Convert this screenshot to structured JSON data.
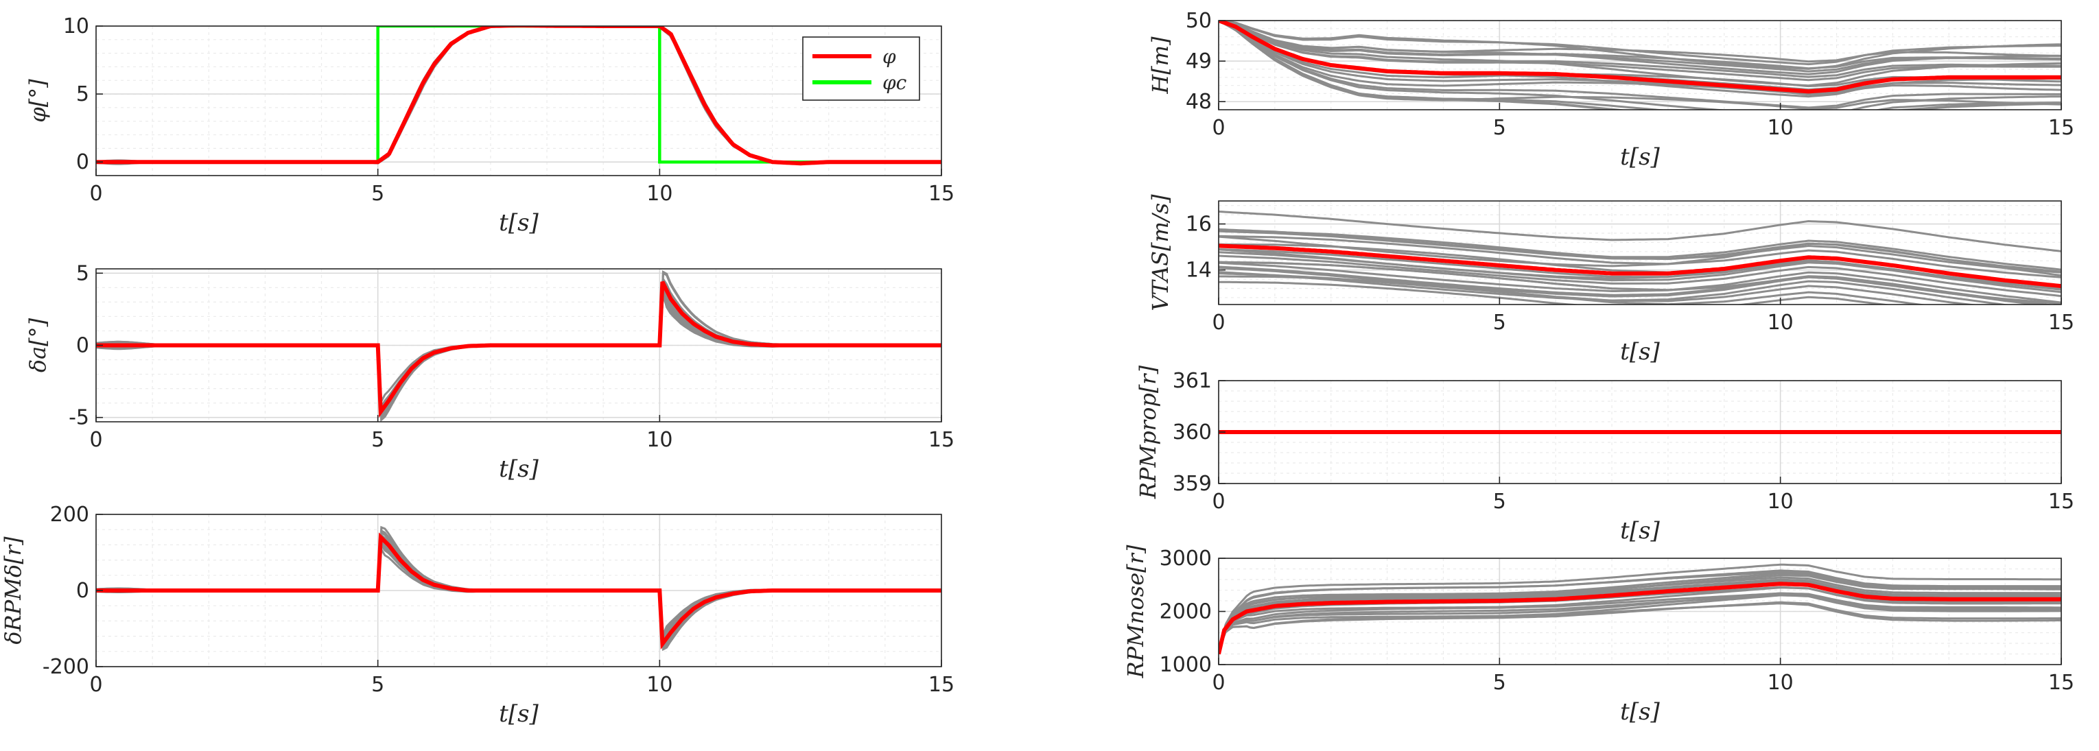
{
  "chart_data": [
    {
      "type": "line",
      "panel": "roll-angle",
      "ylabel": "φ[°]",
      "xlabel": "t[s]",
      "xlim": [
        0,
        15
      ],
      "ylim": [
        -1,
        10
      ],
      "xticks": [
        0,
        5,
        10,
        15
      ],
      "xtick_labels": [
        "0",
        "5",
        "10",
        "15"
      ],
      "yticks": [
        0,
        5,
        10
      ],
      "ytick_labels": [
        "0",
        "5",
        "10"
      ],
      "grid": true,
      "legend": {
        "position": "top-right",
        "entries": [
          {
            "label": "φ",
            "color": "#ff0000"
          },
          {
            "label": "φc",
            "color": "#00ff00"
          }
        ]
      },
      "mean": {
        "name": "φ",
        "color": "#ff0000",
        "x": [
          0,
          0.5,
          1,
          2,
          3,
          4,
          5,
          5.2,
          5.5,
          5.8,
          6,
          6.3,
          6.6,
          7,
          7.5,
          8,
          9,
          10,
          10.2,
          10.5,
          10.8,
          11,
          11.3,
          11.6,
          12,
          12.5,
          13,
          14,
          15
        ],
        "y": [
          0,
          0,
          0,
          0,
          0,
          0,
          0,
          0.6,
          3.2,
          5.8,
          7.2,
          8.7,
          9.5,
          10,
          10.05,
          10.02,
          10,
          10,
          9.4,
          6.8,
          4.2,
          2.8,
          1.3,
          0.5,
          0,
          -0.1,
          0,
          0,
          0
        ]
      },
      "command": {
        "name": "φc",
        "color": "#00ff00",
        "x": [
          0,
          5,
          5,
          10,
          10,
          15
        ],
        "y": [
          0,
          0,
          10,
          10,
          0,
          0
        ]
      },
      "mc_series_count": 20
    },
    {
      "type": "line",
      "panel": "aileron-deflection",
      "ylabel": "δa[°]",
      "xlabel": "t[s]",
      "xlim": [
        0,
        15
      ],
      "ylim": [
        -5.3,
        5.3
      ],
      "xticks": [
        0,
        5,
        10,
        15
      ],
      "xtick_labels": [
        "0",
        "5",
        "10",
        "15"
      ],
      "yticks": [
        -5,
        0,
        5
      ],
      "ytick_labels": [
        "-5",
        "0",
        "5"
      ],
      "grid": true,
      "mean": {
        "name": "δa mean",
        "color": "#ff0000",
        "x": [
          0,
          1,
          2,
          3,
          4,
          5,
          5.05,
          5.2,
          5.4,
          5.6,
          5.8,
          6,
          6.3,
          6.6,
          7,
          8,
          9,
          10,
          10.05,
          10.2,
          10.4,
          10.6,
          10.8,
          11,
          11.3,
          11.6,
          12,
          13,
          14,
          15
        ],
        "y": [
          0,
          0,
          0,
          0,
          0,
          0,
          -4.6,
          -3.8,
          -2.6,
          -1.6,
          -0.9,
          -0.5,
          -0.2,
          -0.05,
          0,
          0,
          0,
          0,
          4.4,
          3.2,
          2.2,
          1.5,
          1.0,
          0.6,
          0.25,
          0.08,
          0,
          0,
          0,
          0
        ]
      },
      "mc_series_count": 20
    },
    {
      "type": "line",
      "panel": "rpm-difference",
      "ylabel": "δRPMδ[r]",
      "xlabel": "t[s]",
      "xlim": [
        0,
        15
      ],
      "ylim": [
        -200,
        200
      ],
      "xticks": [
        0,
        5,
        10,
        15
      ],
      "xtick_labels": [
        "0",
        "5",
        "10",
        "15"
      ],
      "yticks": [
        -200,
        0,
        200
      ],
      "ytick_labels": [
        "-200",
        "0",
        "200"
      ],
      "grid": true,
      "mean": {
        "name": "δRPM mean",
        "color": "#ff0000",
        "x": [
          0,
          1,
          2,
          3,
          4,
          5,
          5.05,
          5.2,
          5.4,
          5.6,
          5.8,
          6,
          6.3,
          6.6,
          7,
          8,
          9,
          10,
          10.05,
          10.2,
          10.4,
          10.6,
          10.8,
          11,
          11.3,
          11.6,
          12,
          13,
          14,
          15
        ],
        "y": [
          0,
          0,
          0,
          0,
          0,
          0,
          140,
          118,
          80,
          50,
          28,
          15,
          5,
          0,
          0,
          0,
          0,
          0,
          -140,
          -110,
          -75,
          -48,
          -30,
          -18,
          -8,
          -2,
          0,
          0,
          0,
          0
        ]
      },
      "mc_series_count": 20
    },
    {
      "type": "line",
      "panel": "altitude",
      "ylabel": "H[m]",
      "xlabel": "t[s]",
      "xlim": [
        0,
        15
      ],
      "ylim": [
        47.8,
        50
      ],
      "xticks": [
        0,
        5,
        10,
        15
      ],
      "xtick_labels": [
        "0",
        "5",
        "10",
        "15"
      ],
      "yticks": [
        48,
        49,
        50
      ],
      "ytick_labels": [
        "48",
        "49",
        "50"
      ],
      "grid": true,
      "mean": {
        "name": "H mean",
        "color": "#ff0000",
        "x": [
          0,
          0.3,
          0.6,
          1,
          1.5,
          2,
          3,
          4,
          5,
          6,
          7,
          8,
          9,
          10,
          10.5,
          11,
          11.5,
          12,
          13,
          14,
          15
        ],
        "y": [
          50,
          49.85,
          49.6,
          49.3,
          49.05,
          48.9,
          48.75,
          48.7,
          48.7,
          48.68,
          48.6,
          48.5,
          48.4,
          48.3,
          48.25,
          48.3,
          48.45,
          48.55,
          48.6,
          48.6,
          48.6
        ]
      },
      "mc_series_count": 20
    },
    {
      "type": "line",
      "panel": "airspeed",
      "ylabel": "VTAS[m/s]",
      "xlabel": "t[s]",
      "xlim": [
        0,
        15
      ],
      "ylim": [
        12.5,
        17
      ],
      "xticks": [
        0,
        5,
        10,
        15
      ],
      "xtick_labels": [
        "0",
        "5",
        "10",
        "15"
      ],
      "yticks": [
        14,
        16
      ],
      "ytick_labels": [
        "14",
        "16"
      ],
      "grid": true,
      "mean": {
        "name": "VTAS mean",
        "color": "#ff0000",
        "x": [
          0,
          1,
          2,
          3,
          4,
          5,
          6,
          7,
          8,
          9,
          10,
          10.5,
          11,
          12,
          13,
          14,
          15
        ],
        "y": [
          15.05,
          14.95,
          14.8,
          14.6,
          14.4,
          14.2,
          14.0,
          13.85,
          13.85,
          14.05,
          14.4,
          14.55,
          14.5,
          14.2,
          13.85,
          13.55,
          13.3
        ]
      },
      "mc_series_count": 20
    },
    {
      "type": "line",
      "panel": "propeller-rpm",
      "ylabel": "RPMprop[r]",
      "xlabel": "t[s]",
      "xlim": [
        0,
        15
      ],
      "ylim": [
        359,
        361
      ],
      "xticks": [
        0,
        5,
        10,
        15
      ],
      "xtick_labels": [
        "0",
        "5",
        "10",
        "15"
      ],
      "yticks": [
        359,
        360,
        361
      ],
      "ytick_labels": [
        "359",
        "360",
        "361"
      ],
      "grid": true,
      "mean": {
        "name": "RPMprop mean",
        "color": "#ff0000",
        "x": [
          0,
          15
        ],
        "y": [
          360,
          360
        ]
      },
      "mc_series_count": 0
    },
    {
      "type": "line",
      "panel": "nose-rpm",
      "ylabel": "RPMnose[r]",
      "xlabel": "t[s]",
      "xlim": [
        0,
        15
      ],
      "ylim": [
        1000,
        3000
      ],
      "xticks": [
        0,
        5,
        10,
        15
      ],
      "xtick_labels": [
        "0",
        "5",
        "10",
        "15"
      ],
      "yticks": [
        1000,
        2000,
        3000
      ],
      "ytick_labels": [
        "1000",
        "2000",
        "3000"
      ],
      "grid": true,
      "mean": {
        "name": "RPMnose mean",
        "color": "#ff0000",
        "x": [
          0,
          0.1,
          0.25,
          0.5,
          1,
          1.5,
          2,
          3,
          4,
          5,
          6,
          7,
          8,
          9,
          10,
          10.5,
          11,
          11.5,
          12,
          13,
          14,
          15
        ],
        "y": [
          1200,
          1650,
          1850,
          2000,
          2100,
          2140,
          2160,
          2180,
          2190,
          2200,
          2230,
          2300,
          2380,
          2450,
          2520,
          2500,
          2380,
          2280,
          2240,
          2230,
          2230,
          2230
        ]
      },
      "mc_series_count": 20
    }
  ]
}
